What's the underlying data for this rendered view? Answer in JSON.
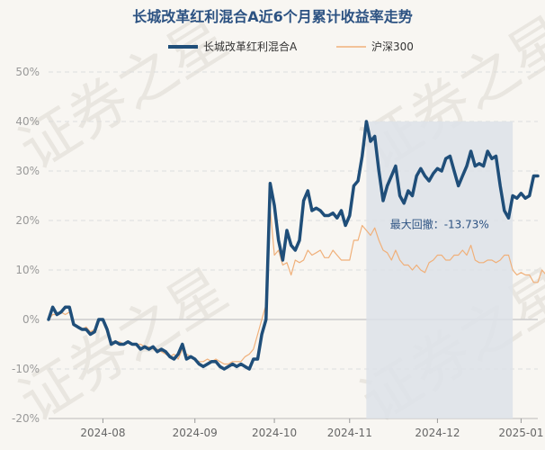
{
  "chart_data": {
    "type": "line",
    "title": "长城改革红利混合A近6个月累计收益率走势",
    "watermark": "证券之星",
    "y_unit": "%",
    "ylim": [
      -20,
      50
    ],
    "y_ticks": [
      50,
      40,
      30,
      20,
      10,
      0,
      -10,
      -20
    ],
    "y_tick_labels": [
      "50%",
      "40%",
      "30%",
      "20%",
      "10%",
      "0%",
      "-10%",
      "-20%"
    ],
    "x_tick_labels": [
      "2024-08",
      "2024-09",
      "2024-10",
      "2024-11",
      "2024-12",
      "2025-01"
    ],
    "x_tick_index": [
      13,
      35,
      54,
      72,
      93,
      113
    ],
    "grid": true,
    "legend_position": "top",
    "series": [
      {
        "name": "长城改革红利混合A",
        "color": "#1f4e79",
        "values": [
          0,
          2.5,
          1,
          1.5,
          2.5,
          2.5,
          -1,
          -1.5,
          -2,
          -2,
          -3,
          -2.5,
          0,
          0,
          -2,
          -5,
          -4.5,
          -5,
          -5,
          -4.5,
          -5,
          -5,
          -6,
          -5.5,
          -6,
          -5.5,
          -6.5,
          -6,
          -6.5,
          -7.5,
          -8,
          -7,
          -5,
          -8,
          -7.5,
          -8,
          -9,
          -9.5,
          -9,
          -8.5,
          -8.5,
          -9.5,
          -10,
          -9.5,
          -9,
          -9.5,
          -9,
          -9.5,
          -10,
          -8,
          -8,
          -3,
          0,
          27.5,
          23,
          16,
          12,
          18,
          15,
          14,
          16,
          24,
          26,
          22,
          22.5,
          22,
          21,
          21,
          21.5,
          20.5,
          22,
          19,
          21,
          27,
          28,
          33,
          40,
          36,
          37,
          30,
          24,
          27,
          29,
          31,
          25,
          23.5,
          26,
          25,
          29,
          30.5,
          29,
          28,
          29.5,
          30.5,
          30,
          32.5,
          33,
          30,
          27,
          29,
          31,
          34,
          31,
          31.5,
          31,
          34,
          32.5,
          33,
          27,
          22,
          20.5,
          25,
          24.5,
          25.5,
          24.5,
          25,
          29,
          29
        ],
        "line_width": 3.5
      },
      {
        "name": "沪深300",
        "color": "#f0b07a",
        "values": [
          0,
          1,
          1,
          1.5,
          1,
          1.5,
          -1,
          -1.5,
          -2,
          -1.5,
          -2.5,
          -2,
          0,
          0,
          -2,
          -4.5,
          -4.5,
          -4.5,
          -5,
          -4.5,
          -5,
          -5,
          -5,
          -5.5,
          -5.5,
          -6,
          -6,
          -6.5,
          -7,
          -7.5,
          -7,
          -8,
          -6,
          -7,
          -7.5,
          -8,
          -8.5,
          -8.5,
          -8,
          -8.5,
          -8,
          -8.5,
          -9,
          -9,
          -8.5,
          -8.5,
          -8.5,
          -7.5,
          -7,
          -6,
          -3,
          0,
          3,
          22.5,
          13,
          14,
          11,
          11.5,
          9,
          12,
          11.5,
          12,
          14,
          13,
          13.5,
          14,
          12.5,
          12.5,
          14,
          13,
          12,
          12,
          12,
          16,
          16,
          19,
          18,
          17,
          18.5,
          16,
          14,
          13.5,
          12,
          14,
          12,
          11,
          11,
          10,
          11,
          10,
          9.5,
          11.5,
          12,
          13,
          13,
          12,
          12,
          13,
          13,
          14,
          13,
          15,
          12,
          11.5,
          11.5,
          12,
          12,
          11.5,
          12,
          13,
          13,
          10,
          9,
          9.5,
          9,
          9,
          7.5,
          7.5,
          10,
          9
        ]
      }
    ],
    "annotation": {
      "text": "最大回撤：-13.73%",
      "shade_start_index": 76,
      "shade_end_index": 111,
      "shade_color": "#dde2e9"
    }
  }
}
